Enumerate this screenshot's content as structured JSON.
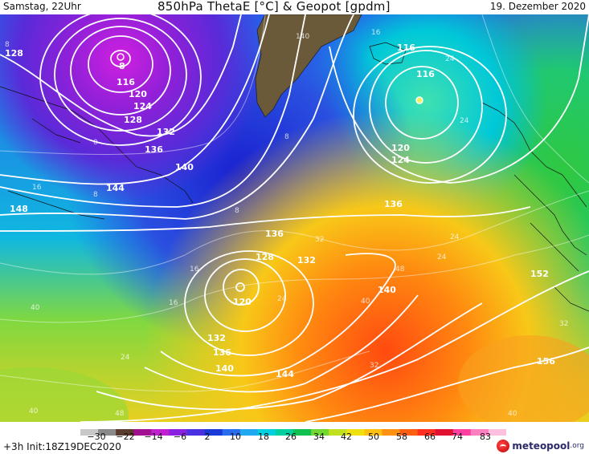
{
  "header": {
    "left_text": "Samstag, 22Uhr",
    "title": "850hPa ThetaE [°C] & Geopot [gpdm]",
    "right_text": "19. Dezember 2020"
  },
  "map": {
    "colors": {
      "deep_violet": "#7a10c8",
      "violet": "#5a2ad8",
      "deep_blue": "#1a2fd8",
      "blue": "#2a66ee",
      "cyan": "#00c8e8",
      "teal": "#00d6b0",
      "green": "#20d060",
      "yellow_green": "#a8e030",
      "yellow": "#f0e020",
      "orange": "#ff9a10",
      "red_orange": "#ff5a10",
      "land_greenland": "#6b5a3a",
      "contour": "#ffffff"
    },
    "geopotential_labels": [
      "8",
      "128",
      "116",
      "120",
      "124",
      "128",
      "132",
      "136",
      "140",
      "144",
      "148",
      "116",
      "116",
      "120",
      "124",
      "136",
      "136",
      "128",
      "132",
      "120",
      "132",
      "136",
      "140",
      "144",
      "140",
      "152",
      "156"
    ],
    "thetae_labels": [
      "8",
      "0",
      "8",
      "16",
      "8",
      "8",
      "16",
      "140",
      "16",
      "24",
      "24",
      "24",
      "24",
      "32",
      "16",
      "24",
      "40",
      "48",
      "40",
      "24",
      "32",
      "32",
      "40",
      "48",
      "40",
      "40"
    ]
  },
  "footer": {
    "colorbar_labels": [
      "−30",
      "−22",
      "−14",
      "−6",
      "2",
      "10",
      "18",
      "26",
      "34",
      "42",
      "50",
      "58",
      "66",
      "74",
      "83"
    ],
    "colorbar_colors": [
      "#c8c8c8",
      "#8a8a8a",
      "#5a3a2a",
      "#a01090",
      "#c020d0",
      "#8a20e0",
      "#4a30e0",
      "#1a3ad8",
      "#2a6cee",
      "#20a8f0",
      "#00d0e0",
      "#00d0a0",
      "#10c050",
      "#70d830",
      "#c0e020",
      "#f0e010",
      "#ffc010",
      "#ff9010",
      "#ff6010",
      "#ff3020",
      "#e01030",
      "#ff40a0",
      "#ff80c0",
      "#ffc0e0"
    ],
    "init_text": "+3h Init:18Z19DEC2020",
    "logo_text": "meteopool",
    "logo_suffix": ".org"
  }
}
